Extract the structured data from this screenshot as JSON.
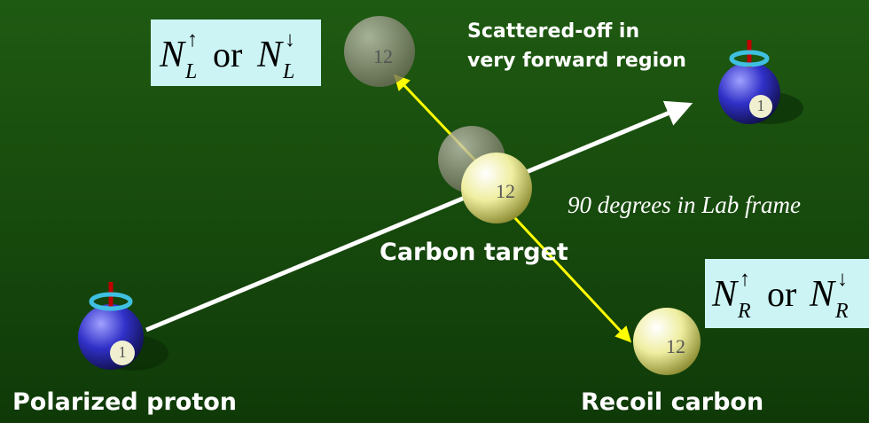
{
  "labels": {
    "polarized_proton": "Polarized proton",
    "carbon_target": "Carbon target",
    "recoil_carbon": "Recoil carbon",
    "scattered_off": [
      "Scattered-off in",
      "very forward region"
    ],
    "lab_frame": "90 degrees in Lab frame"
  },
  "counts": {
    "left": {
      "symbol": "N",
      "subscript": "L",
      "up": "↑",
      "conj": "or",
      "down": "↓"
    },
    "right": {
      "symbol": "N",
      "subscript": "R",
      "up": "↑",
      "conj": "or",
      "down": "↓"
    }
  },
  "balls": [
    {
      "label": "1"
    },
    {
      "label": "1"
    },
    {
      "label": "12"
    },
    {
      "label": "12"
    },
    {
      "label": "12"
    }
  ]
}
